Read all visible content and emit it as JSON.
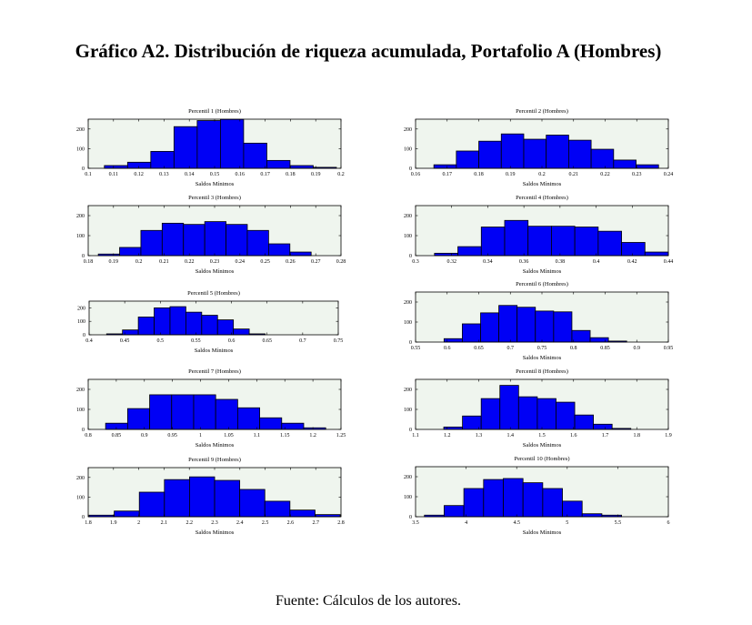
{
  "title": "Gráfico A2. Distribución de riqueza acumulada, Portafolio A (Hombres)",
  "footer": "Fuente: Cálculos de los autores.",
  "chart_data": [
    {
      "type": "bar",
      "title": "Percentil 1 (Hombres)",
      "xlabel": "Saldos Mínimos",
      "xlim": [
        0.1,
        0.2
      ],
      "ylim": [
        0,
        250
      ],
      "xticks": [
        "0.1",
        "0.11",
        "0.12",
        "0.13",
        "0.14",
        "0.15",
        "0.16",
        "0.17",
        "0.18",
        "0.19",
        "0.2"
      ],
      "yticks": [
        "0",
        "100",
        "200"
      ],
      "bin_start": 0.1064,
      "bin_width": 0.00918,
      "counts": [
        14,
        31,
        86,
        212,
        243,
        249,
        128,
        40,
        14,
        5
      ]
    },
    {
      "type": "bar",
      "title": "Percentil 2 (Hombres)",
      "xlabel": "Saldos Mínimos",
      "xlim": [
        0.16,
        0.24
      ],
      "ylim": [
        0,
        250
      ],
      "xticks": [
        "0.16",
        "0.17",
        "0.18",
        "0.19",
        "0.2",
        "0.21",
        "0.22",
        "0.23",
        "0.24"
      ],
      "yticks": [
        "0",
        "100",
        "200"
      ],
      "bin_start": 0.1658,
      "bin_width": 0.00711,
      "counts": [
        18,
        88,
        138,
        175,
        148,
        169,
        143,
        97,
        42,
        18
      ]
    },
    {
      "type": "bar",
      "title": "Percentil 3 (Hombres)",
      "xlabel": "Saldos Mínimos",
      "xlim": [
        0.18,
        0.28
      ],
      "ylim": [
        0,
        250
      ],
      "xticks": [
        "0.18",
        "0.19",
        "0.2",
        "0.21",
        "0.22",
        "0.23",
        "0.24",
        "0.25",
        "0.26",
        "0.27",
        "0.28"
      ],
      "yticks": [
        "0",
        "100",
        "200"
      ],
      "bin_start": 0.184,
      "bin_width": 0.00842,
      "counts": [
        8,
        41,
        126,
        162,
        156,
        170,
        156,
        126,
        59,
        18
      ]
    },
    {
      "type": "bar",
      "title": "Percentil 4 (Hombres)",
      "xlabel": "Saldos Mínimos",
      "xlim": [
        0.3,
        0.44
      ],
      "ylim": [
        0,
        250
      ],
      "xticks": [
        "0.3",
        "0.32",
        "0.34",
        "0.36",
        "0.38",
        "0.4",
        "0.42",
        "0.44"
      ],
      "yticks": [
        "0",
        "100",
        "200"
      ],
      "bin_start": 0.3105,
      "bin_width": 0.01295,
      "counts": [
        12,
        45,
        143,
        176,
        147,
        147,
        143,
        122,
        66,
        18
      ]
    },
    {
      "type": "bar",
      "title": "Percentil 5 (Hombres)",
      "xlabel": "Saldos Mínimos",
      "xlim": [
        0.4,
        0.75
      ],
      "ylim": [
        0,
        250
      ],
      "xticks": [
        "0.4",
        "0.45",
        "0.5",
        "0.55",
        "0.6",
        "0.65",
        "0.7",
        "0.75"
      ],
      "yticks": [
        "0",
        "100",
        "200"
      ],
      "bin_start": 0.4246,
      "bin_width": 0.02226,
      "counts": [
        7,
        36,
        132,
        200,
        209,
        168,
        145,
        111,
        43,
        7
      ]
    },
    {
      "type": "bar",
      "title": "Percentil 6 (Hombres)",
      "xlabel": "Saldos Mínimos",
      "xlim": [
        0.55,
        0.95
      ],
      "ylim": [
        0,
        250
      ],
      "xticks": [
        "0.55",
        "0.6",
        "0.65",
        "0.7",
        "0.75",
        "0.8",
        "0.85",
        "0.9",
        "0.95"
      ],
      "yticks": [
        "0",
        "100",
        "200"
      ],
      "bin_start": 0.5951,
      "bin_width": 0.0289,
      "counts": [
        17,
        91,
        146,
        183,
        174,
        155,
        151,
        58,
        22,
        5
      ]
    },
    {
      "type": "bar",
      "title": "Percentil 7 (Hombres)",
      "xlabel": "Saldos Mínimos",
      "xlim": [
        0.8,
        1.25
      ],
      "ylim": [
        0,
        250
      ],
      "xticks": [
        "0.8",
        "0.85",
        "0.9",
        "0.95",
        "1",
        "1.05",
        "1.1",
        "1.15",
        "1.2",
        "1.25"
      ],
      "yticks": [
        "0",
        "100",
        "200"
      ],
      "bin_start": 0.831,
      "bin_width": 0.03918,
      "counts": [
        31,
        104,
        173,
        173,
        173,
        150,
        108,
        58,
        31,
        8
      ]
    },
    {
      "type": "bar",
      "title": "Percentil 8 (Hombres)",
      "xlabel": "Saldos Mínimos",
      "xlim": [
        1.1,
        1.9
      ],
      "ylim": [
        0,
        250
      ],
      "xticks": [
        "1.1",
        "1.2",
        "1.3",
        "1.4",
        "1.5",
        "1.6",
        "1.7",
        "1.8",
        "1.9"
      ],
      "yticks": [
        "0",
        "100",
        "200"
      ],
      "bin_start": 1.1893,
      "bin_width": 0.0592,
      "counts": [
        12,
        67,
        154,
        220,
        163,
        154,
        136,
        72,
        26,
        5
      ]
    },
    {
      "type": "bar",
      "title": "Percentil 9 (Hombres)",
      "xlabel": "Saldos Mínimos",
      "xlim": [
        1.8,
        2.8
      ],
      "ylim": [
        0,
        250
      ],
      "xticks": [
        "1.8",
        "1.9",
        "2",
        "2.1",
        "2.2",
        "2.3",
        "2.4",
        "2.5",
        "2.6",
        "2.7",
        "2.8"
      ],
      "yticks": [
        "0",
        "100",
        "200"
      ],
      "bin_start": 1.8036,
      "bin_width": 0.0993,
      "counts": [
        8,
        29,
        125,
        189,
        203,
        185,
        139,
        79,
        34,
        11
      ]
    },
    {
      "type": "bar",
      "title": "Percentil 10 (Hombres)",
      "xlabel": "Saldos Mínimos",
      "xlim": [
        3.5,
        6
      ],
      "ylim": [
        0,
        250
      ],
      "xticks": [
        "3.5",
        "4",
        "4.5",
        "5",
        "5.5",
        "6"
      ],
      "yticks": [
        "0",
        "100",
        "200"
      ],
      "bin_start": 3.5877,
      "bin_width": 0.195,
      "counts": [
        8,
        56,
        141,
        186,
        191,
        170,
        141,
        78,
        15,
        8
      ]
    }
  ]
}
